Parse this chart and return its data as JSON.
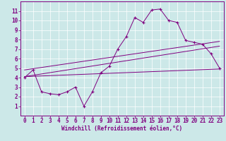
{
  "xlabel": "Windchill (Refroidissement éolien,°C)",
  "background_color": "#cce8e8",
  "line_color": "#800080",
  "grid_color": "#ffffff",
  "xlim": [
    -0.5,
    23.5
  ],
  "ylim": [
    0,
    12
  ],
  "xticks": [
    0,
    1,
    2,
    3,
    4,
    5,
    6,
    7,
    8,
    9,
    10,
    11,
    12,
    13,
    14,
    15,
    16,
    17,
    18,
    19,
    20,
    21,
    22,
    23
  ],
  "yticks": [
    1,
    2,
    3,
    4,
    5,
    6,
    7,
    8,
    9,
    10,
    11
  ],
  "line1_x": [
    0,
    1,
    2,
    3,
    4,
    5,
    6,
    7,
    8,
    9,
    10,
    11,
    12,
    13,
    14,
    15,
    16,
    17,
    18,
    19,
    20,
    21,
    22,
    23
  ],
  "line1_y": [
    4.0,
    4.8,
    2.5,
    2.3,
    2.2,
    2.5,
    3.0,
    1.0,
    2.5,
    4.5,
    5.2,
    7.0,
    8.3,
    10.3,
    9.8,
    11.1,
    11.2,
    10.0,
    9.8,
    7.9,
    7.7,
    7.5,
    6.5,
    5.0
  ],
  "line2_x": [
    0,
    23
  ],
  "line2_y": [
    4.1,
    4.9
  ],
  "line3_x": [
    0,
    23
  ],
  "line3_y": [
    4.8,
    7.8
  ],
  "line4_x": [
    0,
    23
  ],
  "line4_y": [
    4.1,
    7.3
  ]
}
